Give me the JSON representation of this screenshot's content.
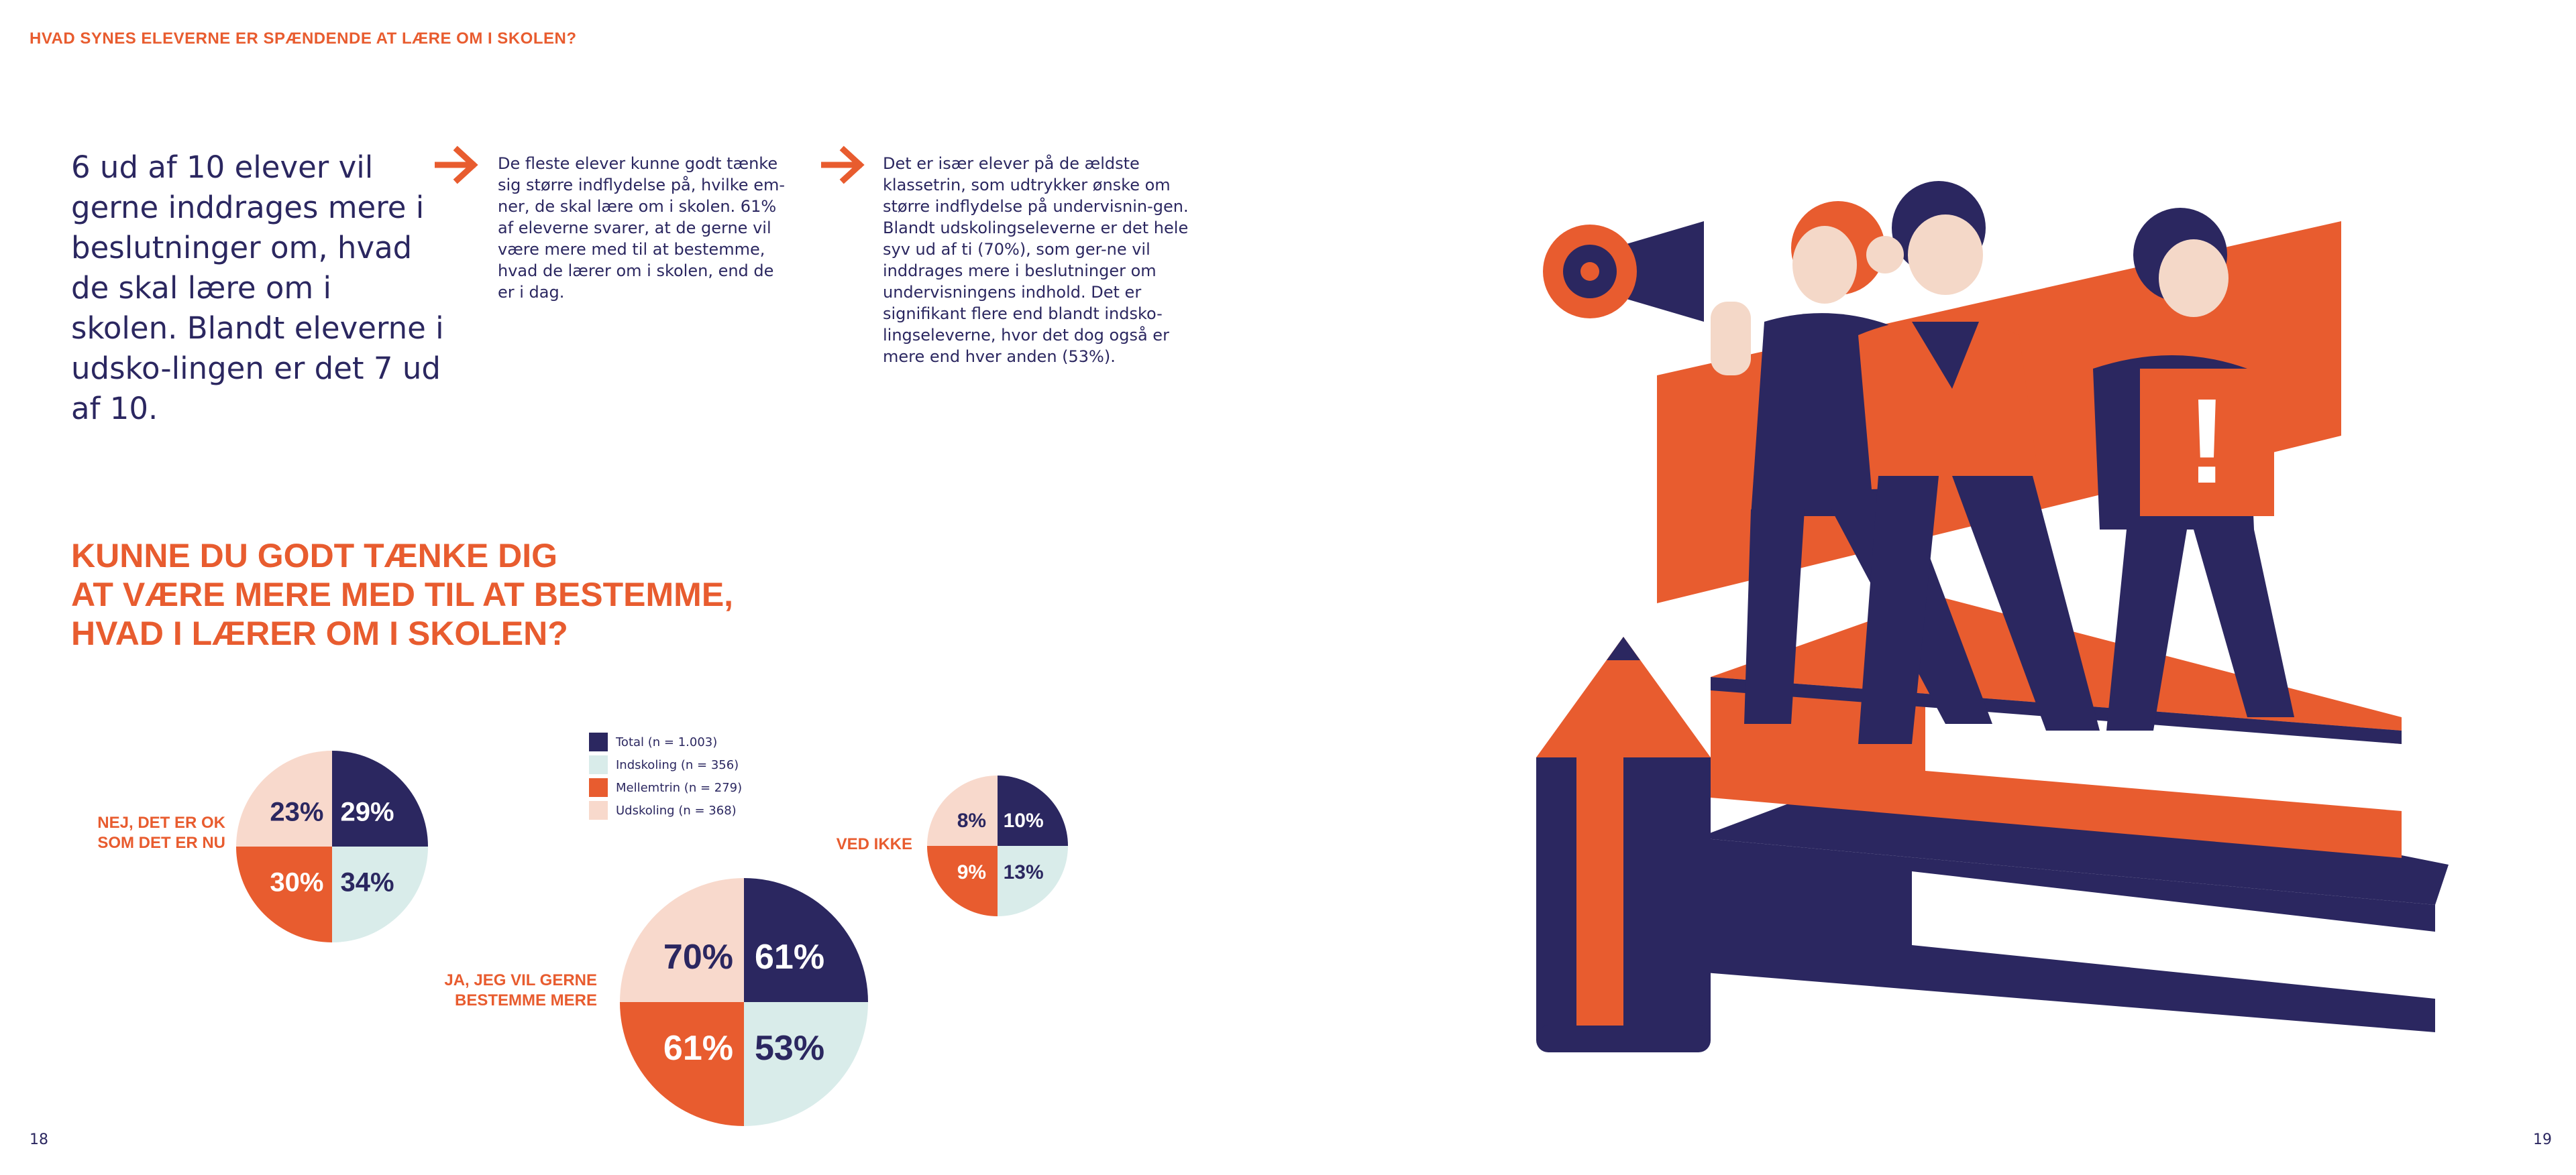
{
  "header": {
    "title": "HVAD SYNES ELEVERNE ER SPÆNDENDE AT LÆRE OM I SKOLEN?"
  },
  "lead": {
    "text": "6 ud af 10 elever vil gerne inddrages mere i beslutninger om, hvad de skal lære om i skolen. Blandt eleverne i udsko-lingen er det 7 ud af 10."
  },
  "column1": {
    "text": "De fleste elever kunne godt tænke sig større indflydelse på, hvilke em-ner, de skal lære om i skolen. 61% af eleverne svarer, at de gerne vil være mere med til at bestemme, hvad de lærer om i skolen, end de er i dag."
  },
  "column2": {
    "text": "Det er især elever på de ældste klassetrin, som udtrykker ønske om større indflydelse på undervisnin-gen. Blandt udskolingseleverne er det hele syv ud af ti (70%), som ger-ne vil inddrages mere i beslutninger om undervisningens indhold. Det er signifikant flere end blandt indsko-lingseleverne, hvor det dog også er mere end hver anden (53%)."
  },
  "question": {
    "line1": "KUNNE DU GODT TÆNKE DIG",
    "line2": "AT VÆRE MERE MED TIL AT BESTEMME,",
    "line3": "HVAD I LÆRER OM I SKOLEN?"
  },
  "colors": {
    "navy": "#2b2760",
    "orange": "#e85c2f",
    "light_blue": "#d9ecea",
    "peach": "#f8d9cc",
    "skin": "#f4d8c8"
  },
  "legend": [
    {
      "label": "Total (n = 1.003)",
      "color": "#2b2760"
    },
    {
      "label": "Indskoling (n = 356)",
      "color": "#d9ecea"
    },
    {
      "label": "Mellemtrin (n = 279)",
      "color": "#e85c2f"
    },
    {
      "label": "Udskoling (n = 368)",
      "color": "#f8d9cc"
    }
  ],
  "chart_data": [
    {
      "type": "pie",
      "title": "NEJ, DET ER OK SOM DET ER NU",
      "categories": [
        "Total",
        "Indskoling",
        "Mellemtrin",
        "Udskoling"
      ],
      "values": [
        29,
        34,
        30,
        23
      ],
      "labels": [
        "29%",
        "34%",
        "30%",
        "23%"
      ]
    },
    {
      "type": "pie",
      "title": "JA, JEG VIL GERNE BESTEMME MERE",
      "categories": [
        "Total",
        "Indskoling",
        "Mellemtrin",
        "Udskoling"
      ],
      "values": [
        61,
        53,
        61,
        70
      ],
      "labels": [
        "61%",
        "53%",
        "61%",
        "70%"
      ]
    },
    {
      "type": "pie",
      "title": "VED IKKE",
      "categories": [
        "Total",
        "Indskoling",
        "Mellemtrin",
        "Udskoling"
      ],
      "values": [
        10,
        13,
        9,
        8
      ],
      "labels": [
        "10%",
        "13%",
        "9%",
        "8%"
      ]
    }
  ],
  "pie_labels": {
    "nej_line1": "NEJ, DET ER OK",
    "nej_line2": "SOM DET ER NU",
    "ja_line1": "JA, JEG VIL GERNE",
    "ja_line2": "BESTEMME MERE",
    "ved_ikke": "VED IKKE"
  },
  "illustration": {
    "sign_glyph": "!"
  },
  "page_numbers": {
    "left": "18",
    "right": "19"
  }
}
